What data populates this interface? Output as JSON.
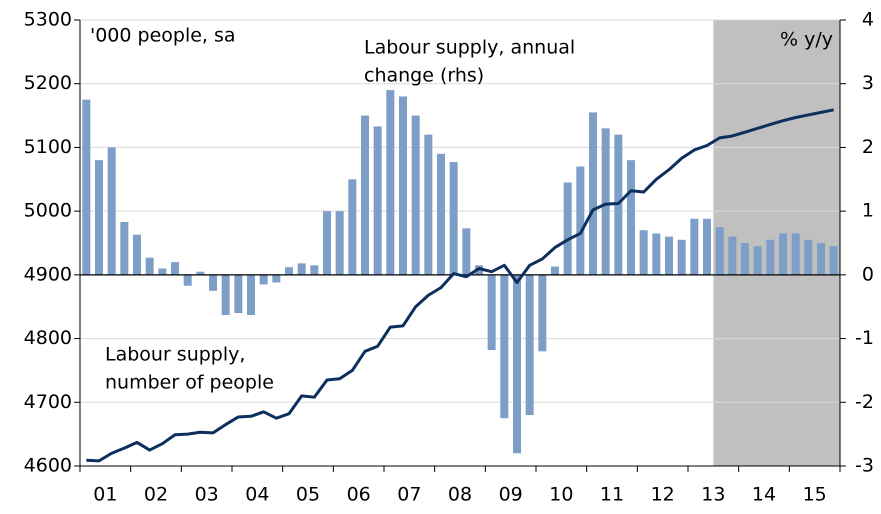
{
  "chart_data": {
    "type": "bar_line",
    "axis_note_left": "'000 people, sa",
    "axis_note_right": "% y/y",
    "annotations": [
      {
        "lines": [
          "Labour supply, annual",
          "change (rhs)"
        ]
      },
      {
        "lines": [
          "Labour supply,",
          "number of people"
        ]
      }
    ],
    "categories": [
      "01",
      null,
      null,
      null,
      "02",
      null,
      null,
      null,
      "03",
      null,
      null,
      null,
      "04",
      null,
      null,
      null,
      "05",
      null,
      null,
      null,
      "06",
      null,
      null,
      null,
      "07",
      null,
      null,
      null,
      "08",
      null,
      null,
      null,
      "09",
      null,
      null,
      null,
      "10",
      null,
      null,
      null,
      "11",
      null,
      null,
      null,
      "12",
      null,
      null,
      null,
      "13",
      null,
      null,
      null,
      "14",
      null,
      null,
      null,
      "15",
      null,
      null,
      null
    ],
    "series": [
      {
        "name": "Labour supply, annual change (rhs)",
        "kind": "bar",
        "axis": "y2",
        "color": "#7d9ec6",
        "values": [
          2.75,
          1.8,
          2.0,
          0.83,
          0.63,
          0.27,
          0.1,
          0.2,
          -0.17,
          0.05,
          -0.25,
          -0.63,
          -0.6,
          -0.63,
          -0.15,
          -0.12,
          0.12,
          0.18,
          0.15,
          1.0,
          1.0,
          1.5,
          2.5,
          2.33,
          2.9,
          2.8,
          2.5,
          2.2,
          1.9,
          1.77,
          0.73,
          0.15,
          -1.18,
          -2.25,
          -2.8,
          -2.2,
          -1.2,
          0.13,
          1.45,
          1.7,
          2.55,
          2.3,
          2.2,
          1.8,
          0.7,
          0.65,
          0.6,
          0.55,
          0.88,
          0.88,
          0.75,
          0.6,
          0.5,
          0.45,
          0.55,
          0.65,
          0.65,
          0.55,
          0.5,
          0.45
        ]
      },
      {
        "name": "Labour supply, number of people",
        "kind": "line",
        "axis": "y",
        "color": "#0d2f5e",
        "values": [
          4609,
          4608,
          4620,
          4628,
          4637,
          4625,
          4635,
          4649,
          4650,
          4653,
          4652,
          4665,
          4677,
          4678,
          4685,
          4675,
          4682,
          4710,
          4708,
          4735,
          4737,
          4750,
          4780,
          4788,
          4818,
          4820,
          4850,
          4868,
          4880,
          4902,
          4897,
          4910,
          4905,
          4915,
          4888,
          4915,
          4925,
          4943,
          4955,
          4965,
          5002,
          5011,
          5012,
          5032,
          5030,
          5050,
          5065,
          5083,
          5096,
          5103,
          5115,
          5118,
          5124,
          5130,
          5136,
          5142,
          5147,
          5151,
          5155,
          5159
        ]
      }
    ],
    "ylim": [
      4600,
      5300
    ],
    "yticks": [
      4600,
      4700,
      4800,
      4900,
      5000,
      5100,
      5200,
      5300
    ],
    "y2lim": [
      -3,
      4
    ],
    "y2ticks": [
      -3,
      -2,
      -1,
      0,
      1,
      2,
      3,
      4
    ],
    "grid": true,
    "shaded_region": {
      "start": 50,
      "end": 60,
      "color": "#c0c0c0"
    }
  }
}
